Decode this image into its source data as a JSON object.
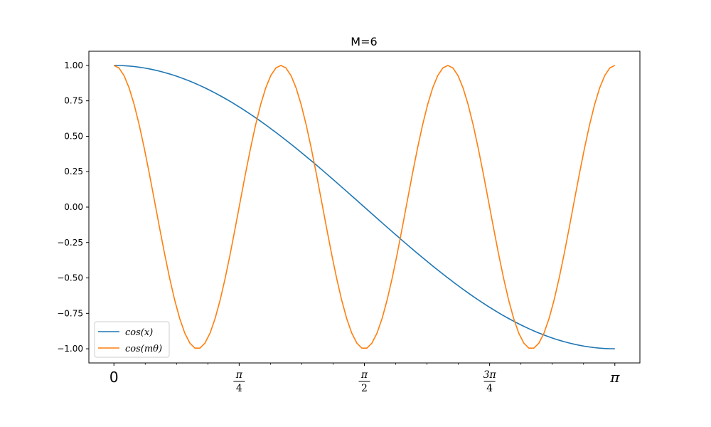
{
  "chart_data": {
    "type": "line",
    "title": "M=6",
    "xlabel": "",
    "ylabel": "",
    "xlim": [
      -0.1571,
      3.2987
    ],
    "ylim": [
      -1.1,
      1.1
    ],
    "grid": false,
    "legend_position": "lower-left",
    "y_ticks": [
      1.0,
      0.75,
      0.5,
      0.25,
      0.0,
      -0.25,
      -0.5,
      -0.75,
      -1.0
    ],
    "y_tick_labels": [
      "1.00",
      "0.75",
      "0.50",
      "0.25",
      "0.00",
      "−0.25",
      "−0.50",
      "−0.75",
      "−1.00"
    ],
    "x_ticks": [
      0,
      0.7854,
      1.5708,
      2.3562,
      3.1416
    ],
    "x_tick_labels": [
      {
        "plain": "0"
      },
      {
        "num": "π",
        "den": "4"
      },
      {
        "num": "π",
        "den": "2"
      },
      {
        "num": "3π",
        "den": "4"
      },
      {
        "plain": "π"
      }
    ],
    "x_minor_tick_step": 0.19635,
    "x_range": [
      0,
      3.14159
    ],
    "num_points": 100,
    "series": [
      {
        "name": "cos(x)",
        "color": "#1f77b4",
        "function": "cos(x)",
        "frequency": 1
      },
      {
        "name": "cos(mθ)",
        "color": "#ff7f0e",
        "function": "cos(6x)",
        "frequency": 6
      }
    ]
  }
}
